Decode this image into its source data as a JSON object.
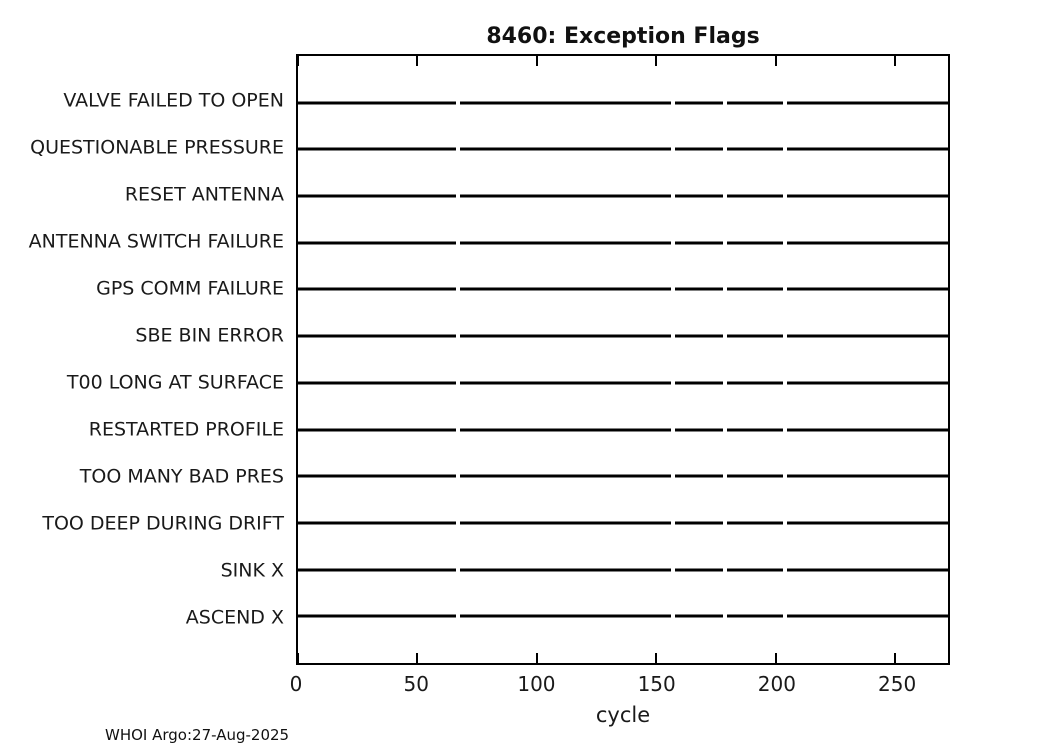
{
  "figure": {
    "title": "8460: Exception Flags",
    "footer": "WHOI Argo:27-Aug-2025"
  },
  "chart_data": {
    "type": "line",
    "title": "8460: Exception Flags",
    "xlabel": "cycle",
    "ylabel": "",
    "xlim": [
      0,
      272
    ],
    "xticks": [
      0,
      50,
      100,
      150,
      200,
      250
    ],
    "grid": false,
    "legend": null,
    "background_color": "#ffffff",
    "line_color": "#000000",
    "categories": [
      "VALVE FAILED TO OPEN",
      "QUESTIONABLE PRESSURE",
      "RESET ANTENNA",
      "ANTENNA SWITCH FAILURE",
      "GPS COMM FAILURE",
      "SBE BIN ERROR",
      "T00 LONG AT SURFACE",
      "RESTARTED PROFILE",
      "TOO MANY BAD PRES",
      "TOO DEEP DURING DRIFT",
      "SINK X",
      "ASCEND X"
    ],
    "series_note": "Every exception flag holds a constant baseline value (no exceptions raised) across all cycles; each category row is a flat black line. Short gaps in every row mark missing cycles.",
    "missing_cycle_gaps": [
      67,
      157,
      179,
      204
    ],
    "segments_cycles": [
      [
        0,
        66.2
      ],
      [
        67.9,
        156.0
      ],
      [
        157.7,
        178.0
      ],
      [
        179.7,
        203.0
      ],
      [
        204.7,
        272
      ]
    ]
  }
}
